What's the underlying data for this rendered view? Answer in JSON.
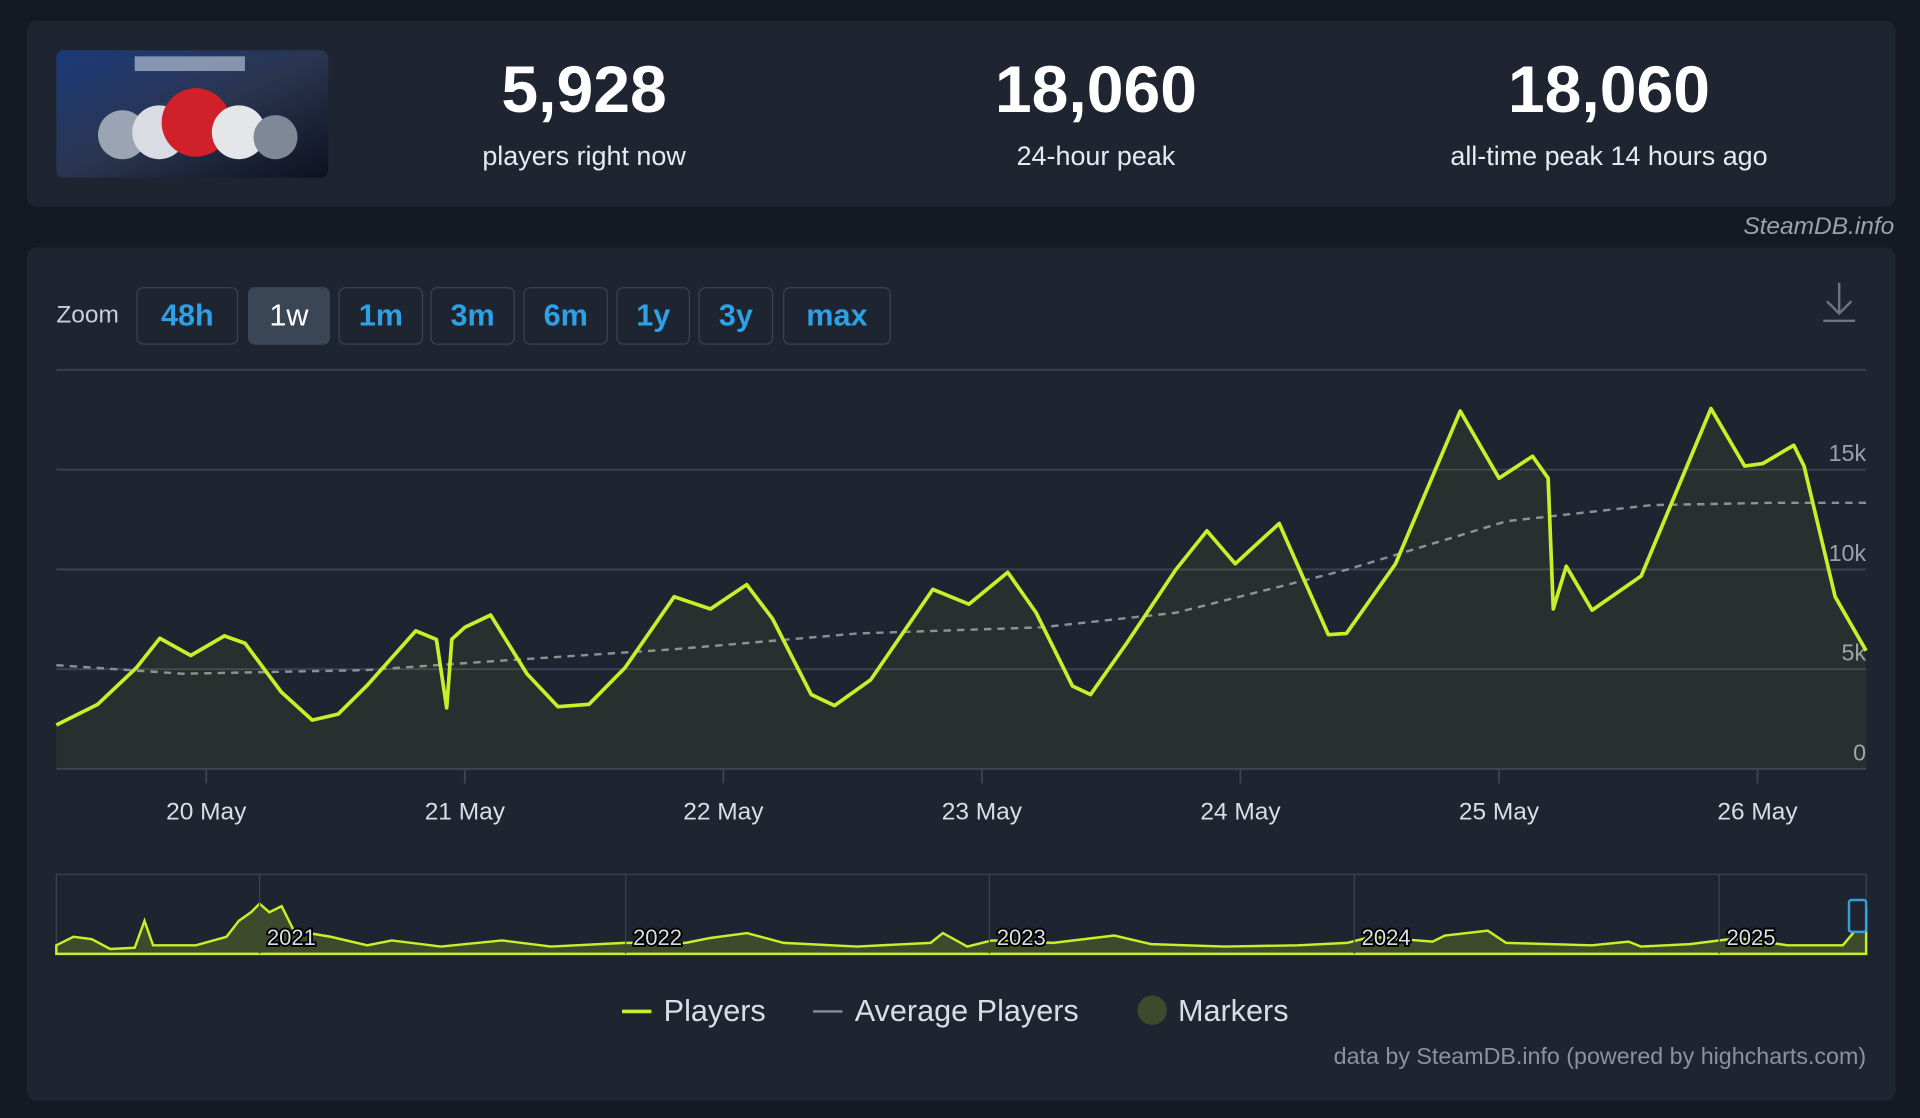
{
  "header": {
    "stats": [
      {
        "value": "5,928",
        "label": "players right now"
      },
      {
        "value": "18,060",
        "label": "24-hour peak"
      },
      {
        "value": "18,060",
        "label": "all-time peak 14 hours ago"
      }
    ],
    "credit": "SteamDB.info"
  },
  "zoom": {
    "label": "Zoom",
    "options": [
      "48h",
      "1w",
      "1m",
      "3m",
      "6m",
      "1y",
      "3y",
      "max"
    ],
    "selected": 1
  },
  "navigator": {
    "labels": [
      "2021",
      "2022",
      "2023",
      "2024",
      "2025"
    ]
  },
  "chart_data": {
    "type": "line",
    "x": [
      19.42,
      19.58,
      19.73,
      19.82,
      19.94,
      20.07,
      20.15,
      20.29,
      20.41,
      20.51,
      20.62,
      20.81,
      20.89,
      20.93,
      20.95,
      21.0,
      21.1,
      21.24,
      21.36,
      21.48,
      21.62,
      21.81,
      21.95,
      22.09,
      22.19,
      22.34,
      22.43,
      22.57,
      22.81,
      22.95,
      23.1,
      23.21,
      23.35,
      23.42,
      23.56,
      23.75,
      23.87,
      23.98,
      24.15,
      24.34,
      24.41,
      24.6,
      24.85,
      25.0,
      25.13,
      25.19,
      25.21,
      25.26,
      25.36,
      25.55,
      25.82,
      25.95,
      26.02,
      26.14,
      26.18,
      26.3,
      26.42
    ],
    "series": [
      {
        "name": "Players",
        "color": "#c8f02a",
        "dash": false,
        "values": [
          2200,
          3240,
          5080,
          6550,
          5690,
          6670,
          6300,
          3860,
          2450,
          2750,
          4160,
          6920,
          6490,
          3060,
          6500,
          7100,
          7710,
          4770,
          3120,
          3240,
          5080,
          8630,
          8020,
          9240,
          7530,
          3730,
          3180,
          4470,
          9000,
          8260,
          9850,
          7830,
          4160,
          3730,
          6300,
          9980,
          11930,
          10280,
          12300,
          6730,
          6790,
          10280,
          17930,
          14570,
          15670,
          14570,
          8020,
          10160,
          7960,
          9670,
          18060,
          15180,
          15300,
          16220,
          15180,
          8630,
          5928
        ]
      },
      {
        "name": "Average Players",
        "color": "#8a8f96",
        "dash": true,
        "x": [
          19.42,
          19.91,
          20.62,
          21.1,
          21.81,
          22.52,
          23.23,
          23.75,
          24.41,
          25.03,
          25.59,
          26.06,
          26.42
        ],
        "values": [
          5200,
          4770,
          4960,
          5390,
          6000,
          6790,
          7100,
          7830,
          9980,
          12420,
          13220,
          13340,
          13340
        ]
      }
    ],
    "markers": {
      "name": "Markers",
      "color": "#3e4a2c"
    },
    "xlim": [
      19.42,
      26.42
    ],
    "xticks": [
      {
        "value": 20,
        "label": "20 May"
      },
      {
        "value": 21,
        "label": "21 May"
      },
      {
        "value": 22,
        "label": "22 May"
      },
      {
        "value": 23,
        "label": "23 May"
      },
      {
        "value": 24,
        "label": "24 May"
      },
      {
        "value": 25,
        "label": "25 May"
      },
      {
        "value": 26,
        "label": "26 May"
      }
    ],
    "ylim": [
      0,
      20000
    ],
    "yticks": [
      0,
      {
        "value": 5000,
        "label": "5k"
      },
      {
        "value": 10000,
        "label": "10k"
      },
      {
        "value": 15000,
        "label": "15k"
      }
    ],
    "grid": true,
    "credit": "data by SteamDB.info (powered by highcharts.com)"
  }
}
